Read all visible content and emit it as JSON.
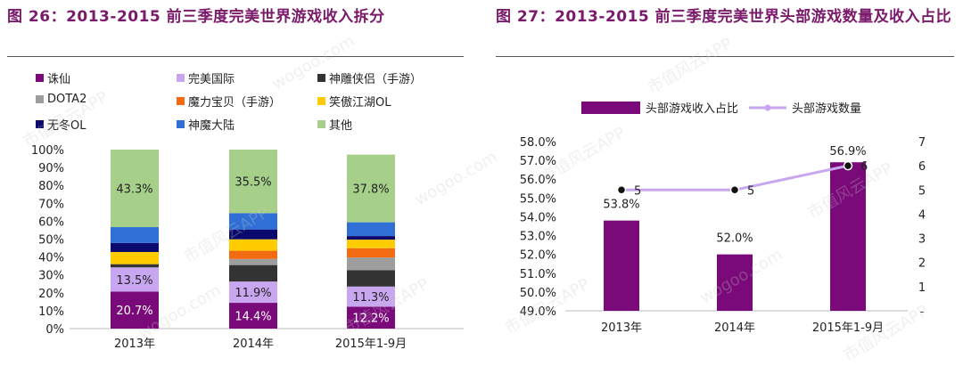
{
  "left": {
    "title": "图 26：2013-2015 前三季度完美世界游戏收入拆分",
    "chart_data": {
      "type": "bar",
      "stacked": true,
      "categories": [
        "2013年",
        "2014年",
        "2015年1-9月"
      ],
      "y_tick_labels": [
        "0%",
        "10%",
        "20%",
        "30%",
        "40%",
        "50%",
        "60%",
        "70%",
        "80%",
        "90%",
        "100%"
      ],
      "ylim": [
        0,
        100
      ],
      "series": [
        {
          "name": "诛仙",
          "color": "#7a0a7a",
          "values": [
            20.7,
            14.4,
            12.2
          ],
          "labels": [
            "20.7%",
            "14.4%",
            "12.2%"
          ],
          "label_color": "#ffffff"
        },
        {
          "name": "完美国际",
          "color": "#c9a6f0",
          "values": [
            13.5,
            11.9,
            11.3
          ],
          "labels": [
            "13.5%",
            "11.9%",
            "11.3%"
          ],
          "label_color": "#222222"
        },
        {
          "name": "神雕侠侣（手游）",
          "color": "#333333",
          "values": [
            1.8,
            9.2,
            9.2
          ]
        },
        {
          "name": "DOTA2",
          "color": "#9e9e9e",
          "values": [
            0,
            3.4,
            7.0
          ]
        },
        {
          "name": "魔力宝贝（手游）",
          "color": "#f26a12",
          "values": [
            0,
            4.6,
            5.2
          ]
        },
        {
          "name": "笑傲江湖OL",
          "color": "#ffcc00",
          "values": [
            6.8,
            6.4,
            4.8
          ]
        },
        {
          "name": "无冬OL",
          "color": "#0a0a6e",
          "values": [
            5.0,
            5.5,
            2.0
          ]
        },
        {
          "name": "神魔大陆",
          "color": "#2f6fd6",
          "values": [
            8.9,
            9.1,
            7.7
          ]
        },
        {
          "name": "其他",
          "color": "#a6cf8a",
          "values": [
            43.3,
            35.5,
            37.8
          ],
          "labels": [
            "43.3%",
            "35.5%",
            "37.8%"
          ],
          "label_color": "#222222"
        }
      ]
    }
  },
  "right": {
    "title": "图 27：2013-2015 前三季度完美世界头部游戏数量及收入占比",
    "chart_data": {
      "type": "bar",
      "categories": [
        "2013年",
        "2014年",
        "2015年1-9月"
      ],
      "series": [
        {
          "name": "头部游戏收入占比",
          "type": "bar",
          "axis": "left",
          "color": "#7a0a7a",
          "values": [
            53.8,
            52.0,
            56.9
          ],
          "labels": [
            "53.8%",
            "52.0%",
            "56.9%"
          ]
        },
        {
          "name": "头部游戏数量",
          "type": "line",
          "axis": "right",
          "color": "#c9a6f0",
          "values": [
            5,
            5,
            6
          ],
          "labels": [
            "5",
            "5",
            "6"
          ]
        }
      ],
      "y_left_lim": [
        49.0,
        58.0
      ],
      "y_left_tick_labels": [
        "49.0%",
        "50.0%",
        "51.0%",
        "52.0%",
        "53.0%",
        "54.0%",
        "55.0%",
        "56.0%",
        "57.0%",
        "58.0%"
      ],
      "y_right_lim": [
        0,
        7
      ],
      "y_right_tick_labels": [
        "-",
        "1",
        "2",
        "3",
        "4",
        "5",
        "6",
        "7"
      ]
    }
  },
  "watermark_text": "市值风云APP",
  "watermark_domain": "wogoo.com"
}
